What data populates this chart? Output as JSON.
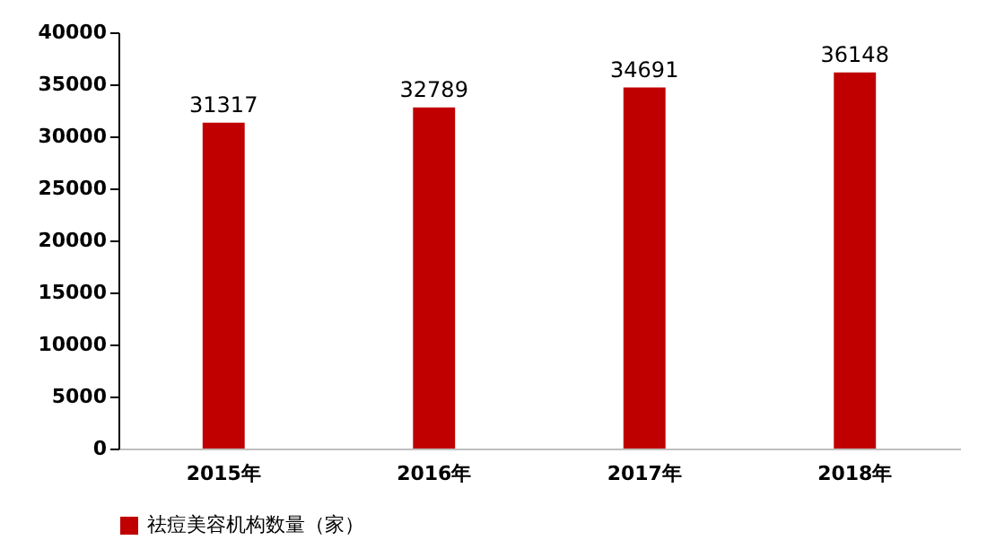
{
  "chart_data": {
    "type": "bar",
    "categories": [
      "2015年",
      "2016年",
      "2017年",
      "2018年"
    ],
    "series": [
      {
        "name": "祛痘美容机构数量（家）",
        "color": "#c00000",
        "values": [
          31317,
          32789,
          34691,
          36148
        ]
      }
    ],
    "ylim": [
      0,
      40000
    ],
    "yticks": [
      0,
      5000,
      10000,
      15000,
      20000,
      25000,
      30000,
      35000,
      40000
    ],
    "data_labels": true,
    "grid": false,
    "legend": "bottom"
  }
}
